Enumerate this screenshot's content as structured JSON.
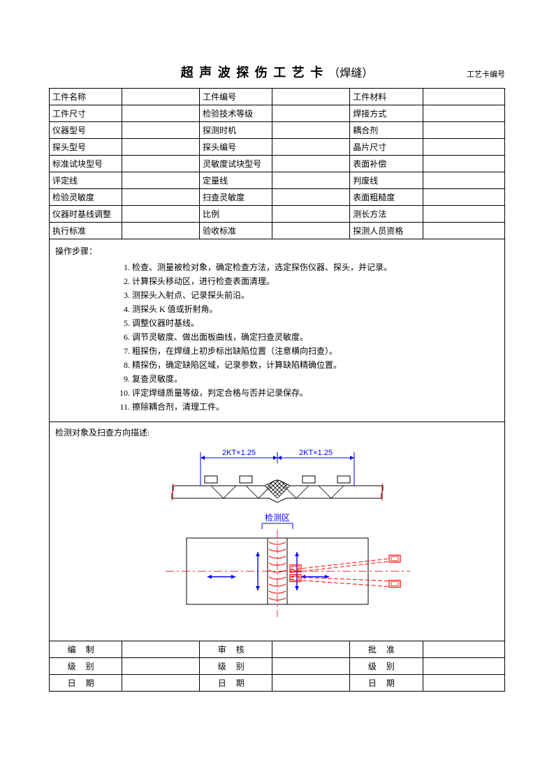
{
  "title_main": "超 声 波 探 伤 工 艺 卡",
  "title_sub": "（焊缝）",
  "card_no_label": "工艺卡编号",
  "rows": [
    [
      "工件名称",
      "",
      "工件编号",
      "",
      "工件材料",
      ""
    ],
    [
      "工件尺寸",
      "",
      "检验技术等级",
      "",
      "焊接方式",
      ""
    ],
    [
      "仪器型号",
      "",
      "探测时机",
      "",
      "耦合剂",
      ""
    ],
    [
      "探头型号",
      "",
      "探头编号",
      "",
      "晶片尺寸",
      ""
    ],
    [
      "标准试块型号",
      "",
      "灵敏度试块型号",
      "",
      "表面补偿",
      ""
    ],
    [
      "评定线",
      "",
      "定量线",
      "",
      "判废线",
      ""
    ],
    [
      "检验灵敏度",
      "",
      "扫查灵敏度",
      "",
      "表面粗糙度",
      ""
    ],
    [
      "仪器时基线调整",
      "",
      "比例",
      "",
      "测长方法",
      ""
    ],
    [
      "执行标准",
      "",
      "验收标准",
      "",
      "探测人员资格",
      ""
    ]
  ],
  "steps_title": "操作步骤：",
  "steps": [
    "检查、测量被检对象，确定检查方法，选定探伤仪器、探头，并记录。",
    "计算探头移动区，进行检查表面清理。",
    "测探头入射点、记录探头前沿。",
    "测探头 K 值或折射角。",
    "调整仪器时基线。",
    "调节灵敏度、做出面板曲线，确定扫查灵敏度。",
    "粗探伤，在焊缝上初步标出缺陷位置（注意横向扫查）。",
    "精探伤，确定缺陷区域，记录参数，计算缺陷精确位置。",
    "复查灵敏度。",
    "评定焊缝质量等级，判定合格与否并记录保存。",
    "擦除耦合剂，清理工件。"
  ],
  "diagram_title": "检测对象及扫查方向描述:",
  "diagram": {
    "dim_label_left": "2KT×1.25",
    "dim_label_right": "2KT×1.25",
    "mid_label": "检测区",
    "colors": {
      "blue": "#0000ff",
      "red": "#ff0000",
      "black": "#000000",
      "dashblue": "#0000ff"
    }
  },
  "signoff": {
    "row1": [
      "编制",
      "",
      "审核",
      "",
      "批准",
      ""
    ],
    "row2": [
      "级别",
      "",
      "级别",
      "",
      "级别",
      ""
    ],
    "row3": [
      "日期",
      "",
      "日期",
      "",
      "日期",
      ""
    ]
  }
}
